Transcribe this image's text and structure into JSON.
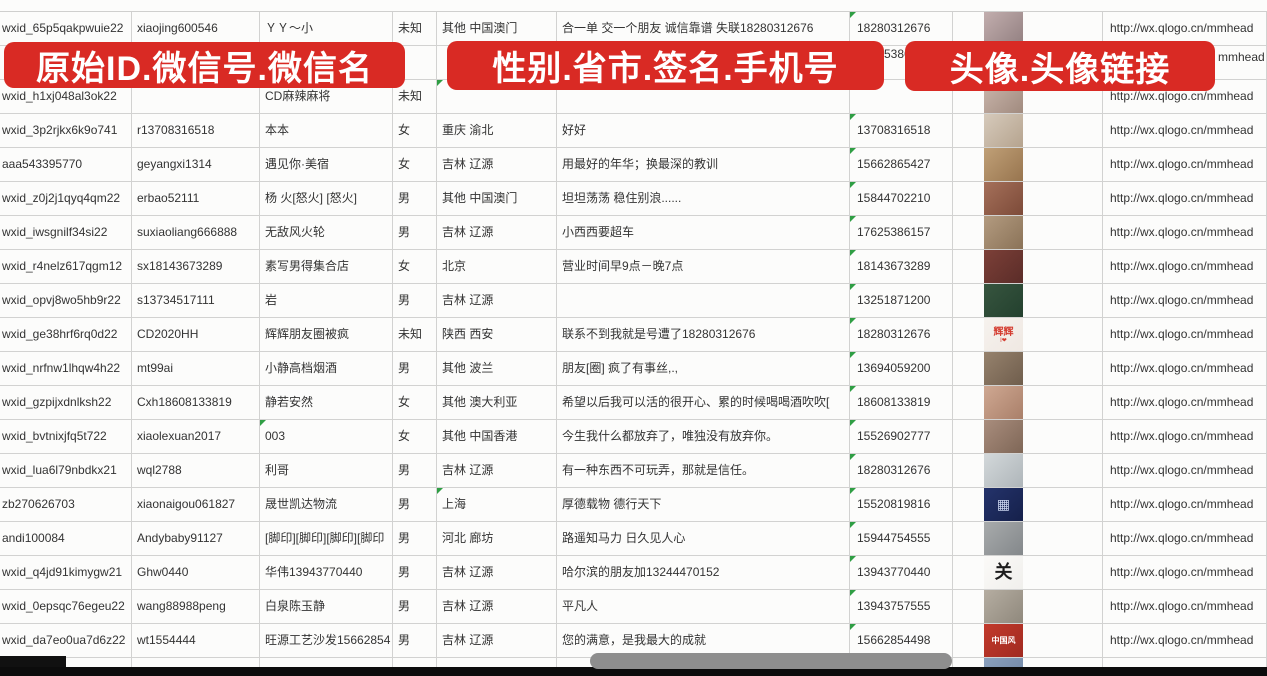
{
  "colors": {
    "banner_red": "#d92a24",
    "grid_line": "#d2d2d1",
    "cell_text": "#333333",
    "error_triangle_green": "#2f9e44",
    "taskbar_black": "#0c0c0c",
    "scroll_pill_gray": "#8e8e8e"
  },
  "banners": [
    {
      "label": "原始ID.微信号.微信名"
    },
    {
      "label": "性别.省市.签名.手机号"
    },
    {
      "label": "头像.头像链接"
    }
  ],
  "fragments": {
    "row2_phone": "5386",
    "row2_url": "mmhead"
  },
  "table": {
    "url_text": "http://wx.qlogo.cn/mmhead",
    "rows": [
      {
        "wxid": "wxid_65p5qakpwuie22",
        "id": "xiaojing600546",
        "name": "ＹＹ～小",
        "gender": "未知",
        "region": "其他 中国澳门",
        "signature": "合一单 交一个朋友 诚信靠谱 失联18280312676",
        "phone": "18280312676",
        "has_url": true,
        "marks": [
          "phone"
        ],
        "avatar": {
          "from": "#c2aeae",
          "to": "#927f80"
        }
      },
      {
        "wxid": "",
        "id": "",
        "name": "",
        "gender": "",
        "region": "",
        "signature": "",
        "phone": "",
        "has_url": false,
        "marks": [],
        "avatar": null
      },
      {
        "wxid": "wxid_h1xj048al3ok22",
        "id": "",
        "name": "CD麻辣麻将",
        "gender": "未知",
        "region": "",
        "signature": "",
        "phone": "",
        "has_url": true,
        "marks": [
          "region"
        ],
        "avatar": {
          "from": "#cbb7ad",
          "to": "#a08a7e"
        }
      },
      {
        "wxid": "wxid_3p2rjkx6k9o741",
        "id": "r13708316518",
        "name": "本本",
        "gender": "女",
        "region": "重庆 渝北",
        "signature": "好好",
        "phone": "13708316518",
        "has_url": true,
        "marks": [
          "phone"
        ],
        "avatar": {
          "from": "#d6cabb",
          "to": "#b5a38e"
        }
      },
      {
        "wxid": "aaa543395770",
        "id": "geyangxi1314",
        "name": "遇见你·美宿",
        "gender": "女",
        "region": "吉林 辽源",
        "signature": "用最好的年华；换最深的教训",
        "phone": "15662865427",
        "has_url": true,
        "marks": [
          "phone"
        ],
        "avatar": {
          "from": "#c0a077",
          "to": "#97744e"
        }
      },
      {
        "wxid": "wxid_z0j2j1qyq4qm22",
        "id": "erbao52111",
        "name": "杨 火[怒火] [怒火]",
        "gender": "男",
        "region": "其他 中国澳门",
        "signature": "坦坦荡荡 稳住别浪......",
        "phone": "15844702210",
        "has_url": true,
        "marks": [
          "phone"
        ],
        "avatar": {
          "from": "#a5705a",
          "to": "#7c4a38"
        }
      },
      {
        "wxid": "wxid_iwsgnilf34si22",
        "id": "suxiaoliang666888",
        "name": "无敌风火轮",
        "gender": "男",
        "region": "吉林 辽源",
        "signature": "小西西要超车",
        "phone": "17625386157",
        "has_url": true,
        "marks": [
          "phone"
        ],
        "avatar": {
          "from": "#b39b80",
          "to": "#8a7257"
        }
      },
      {
        "wxid": "wxid_r4nelz617qgm12",
        "id": "sx18143673289",
        "name": "素写男得集合店",
        "gender": "女",
        "region": "北京",
        "signature": "营业时间早9点－晚7点",
        "phone": "18143673289",
        "has_url": true,
        "marks": [
          "phone"
        ],
        "avatar": {
          "from": "#7c4038",
          "to": "#5a2c28"
        }
      },
      {
        "wxid": "wxid_opvj8wo5hb9r22",
        "id": "s13734517111",
        "name": "岩",
        "gender": "男",
        "region": "吉林 辽源",
        "signature": "",
        "phone": "13251871200",
        "has_url": true,
        "marks": [
          "phone"
        ],
        "avatar": {
          "from": "#37553f",
          "to": "#23402e"
        }
      },
      {
        "wxid": "wxid_ge38hrf6rq0d22",
        "id": "CD2020HH",
        "name": "辉辉朋友圈被疯",
        "gender": "未知",
        "region": "陕西 西安",
        "signature": "联系不到我就是号遭了18280312676",
        "phone": "18280312676",
        "has_url": true,
        "marks": [
          "phone"
        ],
        "avatar": {
          "from": "#f6f2ee",
          "to": "#efe8e2",
          "label": "辉辉",
          "label_color": "#d43c30",
          "label_size": 10,
          "sub": "I❤",
          "sub_color": "#d43c30"
        }
      },
      {
        "wxid": "wxid_nrfnw1lhqw4h22",
        "id": "mt99ai",
        "name": "小静高档烟酒",
        "gender": "男",
        "region": "其他 波兰",
        "signature": "朋友[圈] 疯了有事丝,.,",
        "phone": "13694059200",
        "has_url": true,
        "marks": [
          "phone"
        ],
        "avatar": {
          "from": "#96826d",
          "to": "#6f5d4c"
        }
      },
      {
        "wxid": "wxid_gzpijxdnlksh22",
        "id": "Cxh18608133819",
        "name": "静若安然",
        "gender": "女",
        "region": "其他 澳大利亚",
        "signature": "希望以后我可以活的很开心、累的时候喝喝酒吹吹[",
        "phone": "18608133819",
        "has_url": true,
        "marks": [
          "phone"
        ],
        "avatar": {
          "from": "#cfa892",
          "to": "#a97f69"
        }
      },
      {
        "wxid": "wxid_bvtnixjfq5t722",
        "id": "xiaolexuan2017",
        "name": "003",
        "gender": "女",
        "region": "其他 中国香港",
        "signature": "今生我什么都放弃了，唯独没有放弃你。",
        "phone": "15526902777",
        "has_url": true,
        "marks": [
          "phone",
          "name"
        ],
        "avatar": {
          "from": "#a98d7d",
          "to": "#7e6656"
        }
      },
      {
        "wxid": "wxid_lua6l79nbdkx21",
        "id": "wql2788",
        "name": "利哥",
        "gender": "男",
        "region": "吉林 辽源",
        "signature": "有一种东西不可玩弄，那就是信任。",
        "phone": "18280312676",
        "has_url": true,
        "marks": [
          "phone"
        ],
        "avatar": {
          "from": "#d3d8da",
          "to": "#aeb5b9"
        }
      },
      {
        "wxid": "zb270626703",
        "id": "xiaonaigou061827",
        "name": "晟世凯达物流",
        "gender": "男",
        "region": "上海",
        "signature": "厚德载物 德行天下",
        "phone": "15520819816",
        "has_url": true,
        "marks": [
          "phone",
          "region"
        ],
        "avatar": {
          "from": "#24336b",
          "to": "#15204a",
          "label": "▦",
          "label_color": "#c8d2ec",
          "label_size": 14
        }
      },
      {
        "wxid": "andi100084",
        "id": "Andybaby91127",
        "name": "[脚印][脚印][脚印][脚印",
        "gender": "男",
        "region": "河北 廊坊",
        "signature": "路遥知马力 日久见人心",
        "phone": "15944754555",
        "has_url": true,
        "marks": [
          "phone"
        ],
        "avatar": {
          "from": "#a8abac",
          "to": "#83878a"
        }
      },
      {
        "wxid": "wxid_q4jd91kimygw21",
        "id": "Ghw0440",
        "name": "华伟13943770440",
        "gender": "男",
        "region": "吉林 辽源",
        "signature": "哈尔滨的朋友加13244470152",
        "phone": "13943770440",
        "has_url": true,
        "marks": [
          "phone"
        ],
        "avatar": {
          "from": "#fbfaf8",
          "to": "#f0efec",
          "label": "关",
          "label_color": "#1d1d1d",
          "label_size": 18
        }
      },
      {
        "wxid": "wxid_0epsqc76egeu22",
        "id": "wang88988peng",
        "name": "白泉陈玉静",
        "gender": "男",
        "region": "吉林 辽源",
        "signature": "平凡人",
        "phone": "13943757555",
        "has_url": true,
        "marks": [
          "phone"
        ],
        "avatar": {
          "from": "#b5ada1",
          "to": "#8f887c"
        }
      },
      {
        "wxid": "wxid_da7eo0ua7d6z22",
        "id": "wt1554444",
        "name": "旺源工艺沙发15662854",
        "gender": "男",
        "region": "吉林 辽源",
        "signature": "您的满意，是我最大的成就",
        "phone": "15662854498",
        "has_url": true,
        "marks": [
          "phone"
        ],
        "avatar": {
          "from": "#c23a2c",
          "to": "#a02a20",
          "label": "中国风",
          "label_color": "#ffffff",
          "label_size": 8
        }
      },
      {
        "wxid": "",
        "id": "",
        "name": "",
        "gender": "",
        "region": "",
        "signature": "",
        "phone": "",
        "has_url": false,
        "marks": [],
        "avatar": {
          "from": "#8aa0bd",
          "to": "#6d84a3"
        }
      }
    ]
  }
}
